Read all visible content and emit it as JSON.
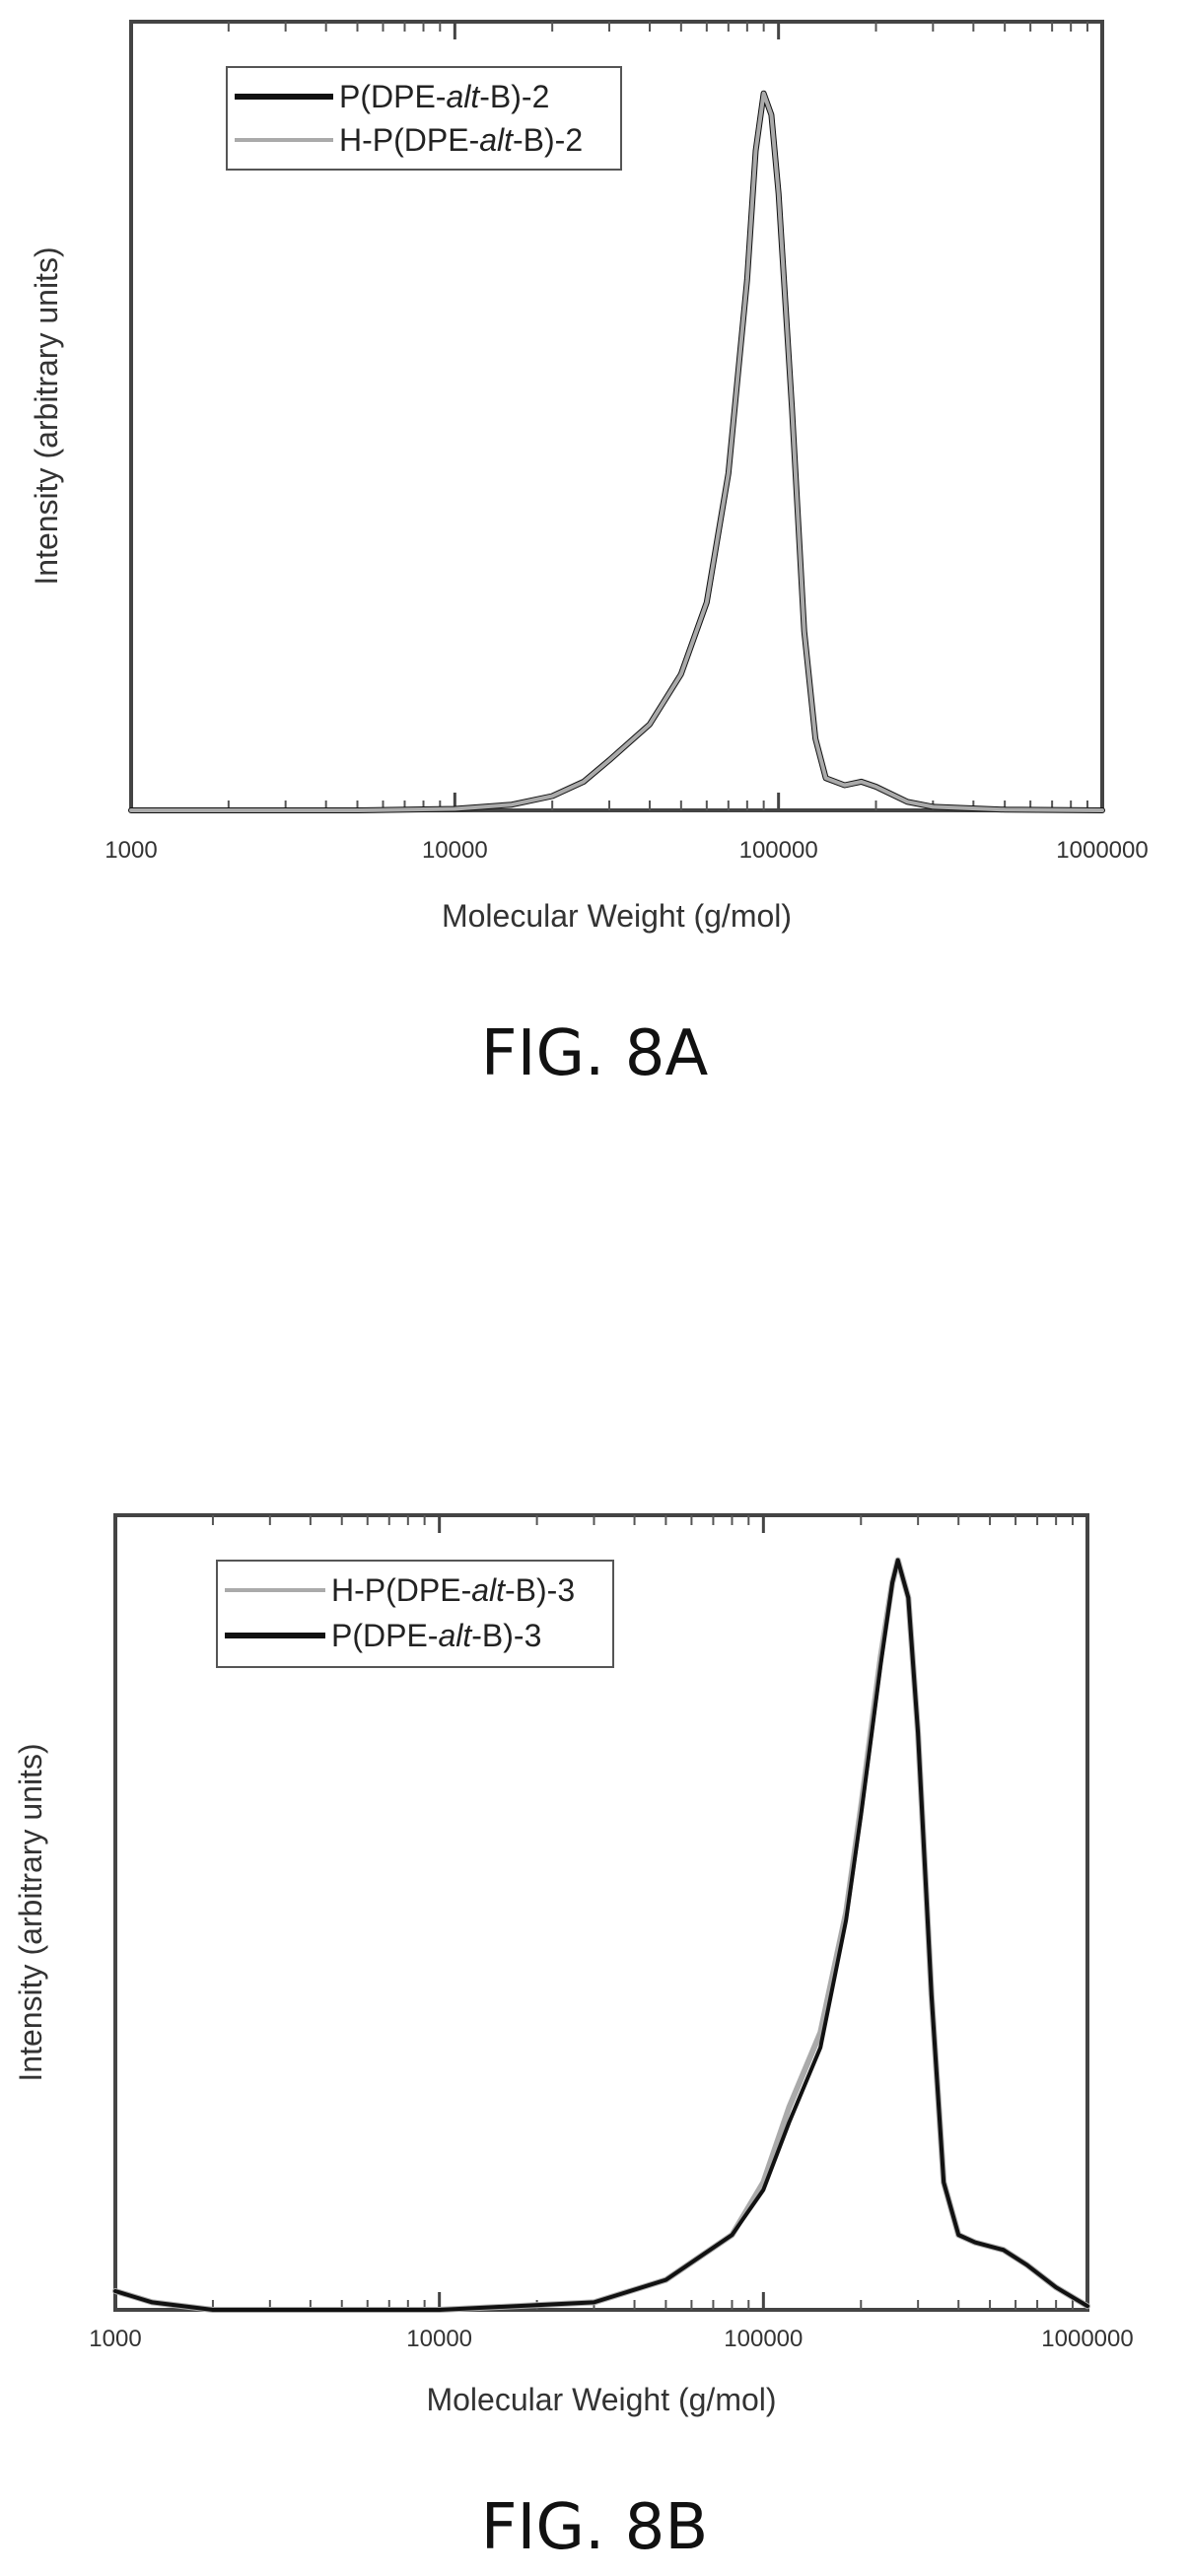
{
  "figures": [
    {
      "caption": "FIG. 8A"
    },
    {
      "caption": "FIG. 8B"
    }
  ],
  "chart_data": [
    {
      "type": "line",
      "title": "",
      "xlabel": "Molecular Weight (g/mol)",
      "ylabel": "Intensity (arbitrary units)",
      "xscale": "log",
      "xlim": [
        1000,
        1000000
      ],
      "ylim": [
        0,
        1.1
      ],
      "x_ticks": [
        1000,
        10000,
        100000,
        1000000
      ],
      "x_tick_labels": [
        "1000",
        "10000",
        "100000",
        "1000000"
      ],
      "grid": false,
      "legend_position": "top-left",
      "series": [
        {
          "name": "P(DPE-alt-B)-2",
          "name_parts": [
            "P(DPE-",
            "alt",
            "-B)-2"
          ],
          "color": "#111111",
          "points": [
            [
              1000,
              0
            ],
            [
              5000,
              0
            ],
            [
              10000,
              0.002
            ],
            [
              15000,
              0.008
            ],
            [
              20000,
              0.02
            ],
            [
              25000,
              0.04
            ],
            [
              30000,
              0.07
            ],
            [
              40000,
              0.12
            ],
            [
              50000,
              0.19
            ],
            [
              60000,
              0.29
            ],
            [
              70000,
              0.47
            ],
            [
              80000,
              0.74
            ],
            [
              85000,
              0.92
            ],
            [
              90000,
              1.0
            ],
            [
              95000,
              0.97
            ],
            [
              100000,
              0.86
            ],
            [
              110000,
              0.56
            ],
            [
              120000,
              0.25
            ],
            [
              130000,
              0.1
            ],
            [
              140000,
              0.045
            ],
            [
              160000,
              0.035
            ],
            [
              180000,
              0.04
            ],
            [
              200000,
              0.033
            ],
            [
              250000,
              0.012
            ],
            [
              300000,
              0.005
            ],
            [
              500000,
              0.001
            ],
            [
              1000000,
              0
            ]
          ]
        },
        {
          "name": "H-P(DPE-alt-B)-2",
          "name_parts": [
            "H-P(DPE-",
            "alt",
            "-B)-2"
          ],
          "color": "#aaaaaa",
          "points": [
            [
              1000,
              0
            ],
            [
              5000,
              0
            ],
            [
              10000,
              0.002
            ],
            [
              15000,
              0.008
            ],
            [
              20000,
              0.02
            ],
            [
              25000,
              0.04
            ],
            [
              30000,
              0.07
            ],
            [
              40000,
              0.12
            ],
            [
              50000,
              0.19
            ],
            [
              60000,
              0.29
            ],
            [
              70000,
              0.47
            ],
            [
              80000,
              0.74
            ],
            [
              85000,
              0.92
            ],
            [
              90000,
              1.0
            ],
            [
              95000,
              0.97
            ],
            [
              100000,
              0.86
            ],
            [
              110000,
              0.56
            ],
            [
              120000,
              0.25
            ],
            [
              130000,
              0.1
            ],
            [
              140000,
              0.045
            ],
            [
              160000,
              0.035
            ],
            [
              180000,
              0.04
            ],
            [
              200000,
              0.033
            ],
            [
              250000,
              0.012
            ],
            [
              300000,
              0.005
            ],
            [
              500000,
              0.001
            ],
            [
              1000000,
              0
            ]
          ]
        }
      ]
    },
    {
      "type": "line",
      "title": "",
      "xlabel": "Molecular Weight (g/mol)",
      "ylabel": "Intensity (arbitrary units)",
      "xscale": "log",
      "xlim": [
        1000,
        1000000
      ],
      "ylim": [
        0,
        1.06
      ],
      "x_ticks": [
        1000,
        10000,
        100000,
        1000000
      ],
      "x_tick_labels": [
        "1000",
        "10000",
        "100000",
        "1000000"
      ],
      "grid": false,
      "legend_position": "top-left",
      "series": [
        {
          "name": "H-P(DPE-alt-B)-3",
          "name_parts": [
            "H-P(DPE-",
            "alt",
            "-B)-3"
          ],
          "color": "#aaaaaa",
          "points": [
            [
              1000,
              0.025
            ],
            [
              1300,
              0.01
            ],
            [
              2000,
              0
            ],
            [
              10000,
              0
            ],
            [
              30000,
              0.01
            ],
            [
              50000,
              0.04
            ],
            [
              80000,
              0.1
            ],
            [
              100000,
              0.17
            ],
            [
              120000,
              0.27
            ],
            [
              150000,
              0.37
            ],
            [
              180000,
              0.53
            ],
            [
              200000,
              0.67
            ],
            [
              230000,
              0.87
            ],
            [
              250000,
              0.97
            ],
            [
              260000,
              1.0
            ],
            [
              280000,
              0.95
            ],
            [
              300000,
              0.77
            ],
            [
              330000,
              0.42
            ],
            [
              360000,
              0.17
            ],
            [
              400000,
              0.1
            ],
            [
              450000,
              0.09
            ],
            [
              550000,
              0.08
            ],
            [
              650000,
              0.06
            ],
            [
              800000,
              0.03
            ],
            [
              1000000,
              0.005
            ]
          ]
        },
        {
          "name": "P(DPE-alt-B)-3",
          "name_parts": [
            "P(DPE-",
            "alt",
            "-B)-3"
          ],
          "color": "#111111",
          "points": [
            [
              1000,
              0.025
            ],
            [
              1300,
              0.01
            ],
            [
              2000,
              0
            ],
            [
              10000,
              0
            ],
            [
              30000,
              0.01
            ],
            [
              50000,
              0.04
            ],
            [
              80000,
              0.1
            ],
            [
              100000,
              0.16
            ],
            [
              120000,
              0.25
            ],
            [
              150000,
              0.35
            ],
            [
              180000,
              0.52
            ],
            [
              200000,
              0.66
            ],
            [
              230000,
              0.86
            ],
            [
              250000,
              0.97
            ],
            [
              260000,
              1.0
            ],
            [
              280000,
              0.95
            ],
            [
              300000,
              0.77
            ],
            [
              330000,
              0.42
            ],
            [
              360000,
              0.17
            ],
            [
              400000,
              0.1
            ],
            [
              450000,
              0.09
            ],
            [
              550000,
              0.08
            ],
            [
              650000,
              0.06
            ],
            [
              800000,
              0.03
            ],
            [
              1000000,
              0.005
            ]
          ]
        }
      ]
    }
  ]
}
